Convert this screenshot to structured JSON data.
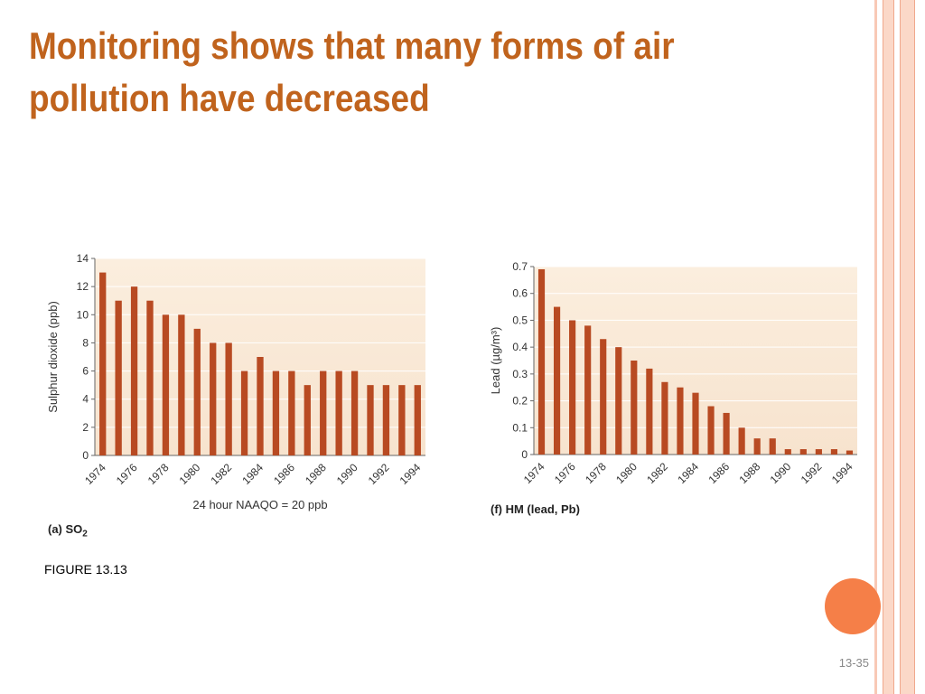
{
  "slide": {
    "title": "Monitoring shows that many forms of air pollution have decreased",
    "figure_label": "FIGURE 13.13",
    "page_number": "13-35",
    "colors": {
      "title": "#c0631d",
      "bar": "#b84a22",
      "plot_bg_top": "#fbeede",
      "plot_bg_bottom": "#f7e3ce",
      "side_stripe": "#f5b8a0",
      "accent_circle": "#f57f48"
    }
  },
  "chart_data": [
    {
      "type": "bar",
      "caption": "(a) SO",
      "caption_sub": "2",
      "categories": [
        "1974",
        "1975",
        "1976",
        "1977",
        "1978",
        "1979",
        "1980",
        "1981",
        "1982",
        "1983",
        "1984",
        "1985",
        "1986",
        "1987",
        "1988",
        "1989",
        "1990",
        "1991",
        "1992",
        "1993",
        "1994"
      ],
      "tick_labels": [
        "1974",
        "1976",
        "1978",
        "1980",
        "1982",
        "1984",
        "1986",
        "1988",
        "1990",
        "1992",
        "1994"
      ],
      "values": [
        13,
        11,
        12,
        11,
        10,
        10,
        9,
        8,
        8,
        6,
        7,
        6,
        6,
        5,
        6,
        6,
        6,
        5,
        5,
        5,
        5
      ],
      "ylabel": "Sulphur dioxide (ppb)",
      "xlabel": "24 hour NAAQO = 20 ppb",
      "ylim": [
        0,
        14
      ],
      "yticks": [
        "0",
        "2",
        "4",
        "6",
        "8",
        "10",
        "12",
        "14"
      ],
      "grid": true
    },
    {
      "type": "bar",
      "caption": "(f) HM (lead, Pb)",
      "caption_sub": "",
      "categories": [
        "1974",
        "1975",
        "1976",
        "1977",
        "1978",
        "1979",
        "1980",
        "1981",
        "1982",
        "1983",
        "1984",
        "1985",
        "1986",
        "1987",
        "1988",
        "1989",
        "1990",
        "1991",
        "1992",
        "1993",
        "1994"
      ],
      "tick_labels": [
        "1974",
        "1976",
        "1978",
        "1980",
        "1982",
        "1984",
        "1986",
        "1988",
        "1990",
        "1992",
        "1994"
      ],
      "values": [
        0.69,
        0.55,
        0.5,
        0.48,
        0.43,
        0.4,
        0.35,
        0.32,
        0.27,
        0.25,
        0.23,
        0.18,
        0.155,
        0.1,
        0.06,
        0.06,
        0.02,
        0.02,
        0.02,
        0.02,
        0.015
      ],
      "ylabel": "Lead (µg/m³)",
      "xlabel": "",
      "ylim": [
        0,
        0.7
      ],
      "yticks": [
        "0",
        "0.1",
        "0.2",
        "0.3",
        "0.4",
        "0.5",
        "0.6",
        "0.7"
      ],
      "grid": true
    }
  ]
}
